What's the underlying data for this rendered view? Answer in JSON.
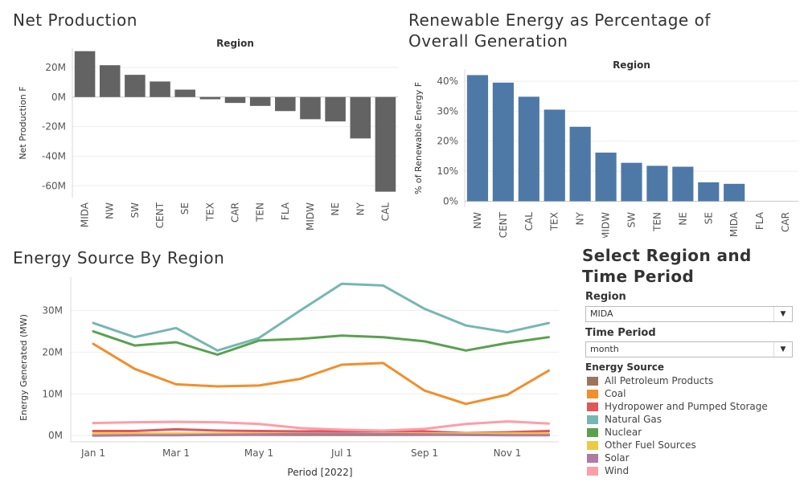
{
  "titles": {
    "net": "Net Production",
    "ren_line1": "Renewable Energy as Percentage of",
    "ren_line2": "Overall Generation",
    "src": "Energy Source By Region"
  },
  "controls": {
    "title_line1": "Select Region and",
    "title_line2": "Time Period",
    "region_label": "Region",
    "region_value": "MIDA",
    "period_label": "Time Period",
    "period_value": "month",
    "legend_title": "Energy Source"
  },
  "chart_data": [
    {
      "type": "bar",
      "title": "Net Production",
      "header": "Region",
      "ylabel": "Net Production F",
      "categories": [
        "MIDA",
        "NW",
        "SW",
        "CENT",
        "SE",
        "TEX",
        "CAR",
        "TEN",
        "FLA",
        "MIDW",
        "NE",
        "NY",
        "CAL"
      ],
      "values": [
        31,
        21.5,
        15,
        10.5,
        5,
        -1.5,
        -4,
        -6,
        -9.5,
        -15,
        -16.5,
        -28,
        -64
      ],
      "ylim": [
        -68,
        33
      ],
      "yticks": [
        20,
        0,
        -20,
        -40,
        -60
      ],
      "ytick_labels": [
        "20M",
        "0M",
        "-20M",
        "-40M",
        "-60M"
      ],
      "color": "#636363",
      "grid": true
    },
    {
      "type": "bar",
      "title": "Renewable Energy as Percentage of Overall Generation",
      "header": "Region",
      "ylabel": "% of Renewable Energy F",
      "categories": [
        "NW",
        "CENT",
        "CAL",
        "TEX",
        "NY",
        "MIDW",
        "SW",
        "TEN",
        "NE",
        "SE",
        "MIDA",
        "FLA",
        "CAR"
      ],
      "values": [
        42,
        39.5,
        34.8,
        30.5,
        24.8,
        16.2,
        12.8,
        11.8,
        11.5,
        6.3,
        5.8,
        0,
        0
      ],
      "ylim": [
        -2,
        44
      ],
      "yticks": [
        0,
        10,
        20,
        30,
        40
      ],
      "ytick_labels": [
        "0%",
        "10%",
        "20%",
        "30%",
        "40%"
      ],
      "color": "#4e79a7",
      "grid": true
    },
    {
      "type": "line",
      "title": "Energy Source By Region",
      "xlabel": "Period [2022]",
      "ylabel": "Energy Generated (MW)",
      "x": [
        "Jan",
        "Feb",
        "Mar",
        "Apr",
        "May",
        "Jun",
        "Jul",
        "Aug",
        "Sep",
        "Oct",
        "Nov",
        "Dec"
      ],
      "xticks": [
        "Jan 1",
        "Mar 1",
        "May 1",
        "Jul 1",
        "Sep 1",
        "Nov 1"
      ],
      "xtick_index": [
        0,
        2,
        4,
        6,
        8,
        10
      ],
      "ylim": [
        -1.5,
        38
      ],
      "yticks": [
        0,
        10,
        20,
        30
      ],
      "ytick_labels": [
        "0M",
        "10M",
        "20M",
        "30M"
      ],
      "grid": true,
      "series": [
        {
          "name": "All Petroleum Products",
          "color": "#9c755f",
          "values": [
            0.2,
            0.2,
            0.2,
            0.2,
            0.2,
            0.2,
            0.2,
            0.2,
            0.2,
            0.2,
            0.2,
            0.3
          ]
        },
        {
          "name": "Coal",
          "color": "#f28e2b",
          "values": [
            22,
            16,
            12.3,
            11.8,
            12,
            13.6,
            17,
            17.4,
            10.8,
            7.6,
            9.8,
            15.6
          ]
        },
        {
          "name": "Hydropower and Pumped Storage",
          "color": "#e15759",
          "values": [
            1.1,
            1.1,
            1.5,
            1.2,
            1.1,
            1.0,
            1.1,
            1.1,
            1.0,
            0.6,
            0.8,
            1.1
          ]
        },
        {
          "name": "Natural Gas",
          "color": "#76b7b2",
          "values": [
            27,
            23.6,
            25.8,
            20.4,
            23.4,
            30,
            36.4,
            36,
            30.4,
            26.4,
            24.8,
            27
          ]
        },
        {
          "name": "Nuclear",
          "color": "#59a14f",
          "values": [
            25,
            21.6,
            22.4,
            19.4,
            22.8,
            23.2,
            24,
            23.6,
            22.6,
            20.4,
            22.2,
            23.6
          ]
        },
        {
          "name": "Other Fuel Sources",
          "color": "#edc948",
          "values": [
            0.5,
            0.5,
            0.5,
            0.5,
            0.5,
            0.5,
            0.5,
            0.5,
            0.5,
            0.5,
            0.5,
            0.5
          ]
        },
        {
          "name": "Solar",
          "color": "#b07aa1",
          "values": [
            0,
            0.1,
            0.1,
            0.2,
            0.3,
            0.4,
            0.5,
            0.4,
            0.3,
            0.2,
            0.1,
            0.1
          ]
        },
        {
          "name": "Wind",
          "color": "#ff9da7",
          "values": [
            3,
            3.2,
            3.3,
            3.2,
            2.8,
            1.8,
            1.4,
            1.2,
            1.6,
            2.8,
            3.4,
            2.9
          ]
        }
      ]
    }
  ]
}
